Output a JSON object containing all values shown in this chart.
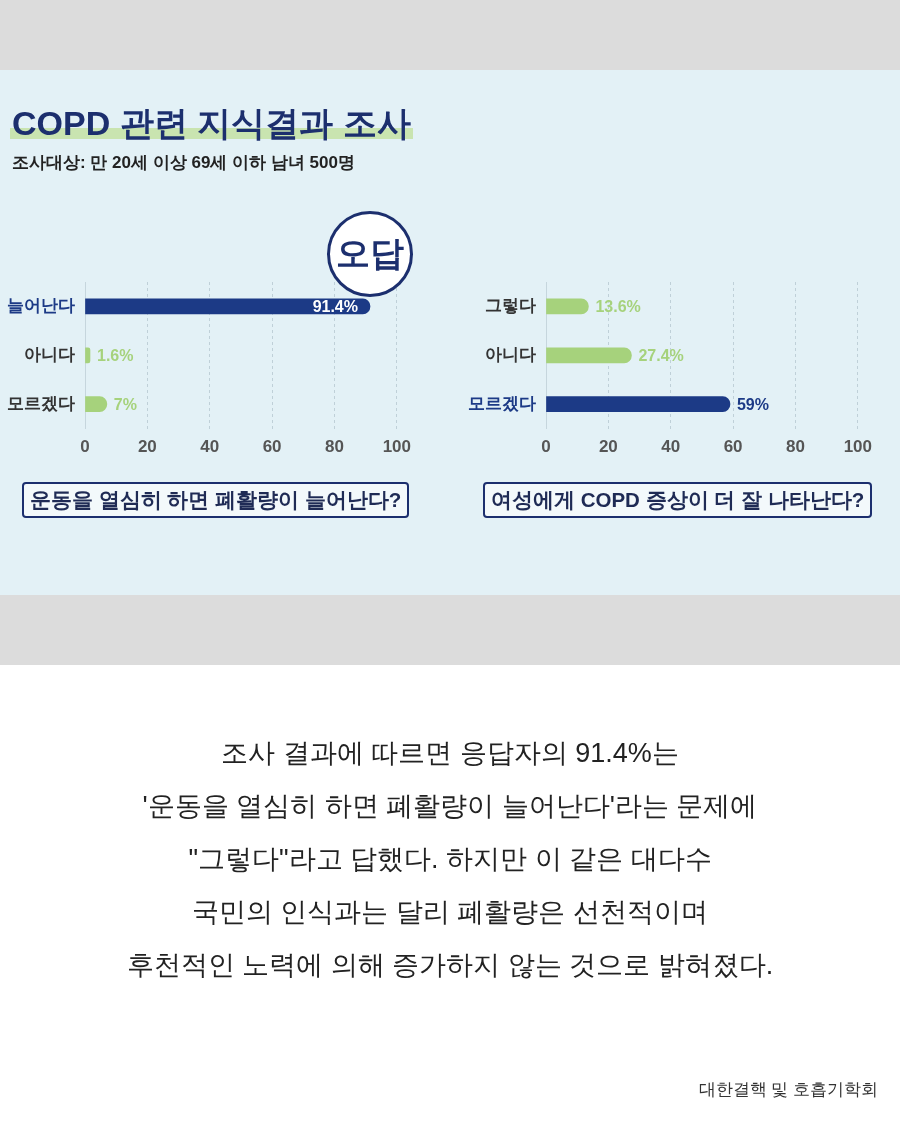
{
  "chart_data": [
    {
      "type": "bar",
      "title": "COPD 관련 지식결과 조사",
      "subtitle": "조사대상: 만 20세 이상 69세 이하 남녀 500명",
      "orientation": "horizontal",
      "categories": [
        "늘어난다",
        "아니다",
        "모르겠다"
      ],
      "values": [
        91.4,
        1.6,
        7
      ],
      "colors": [
        "#1c3a86",
        "#a6d27c",
        "#a6d27c"
      ],
      "value_labels": [
        "91.4%",
        "1.6%",
        "7%"
      ],
      "xlim": [
        0,
        100
      ],
      "xticks": [
        0,
        20,
        40,
        60,
        80,
        100
      ],
      "grid": "x",
      "xlabel": "운동을 열심히 하면 폐활량이 늘어난다?",
      "annotations": [
        {
          "text": "오답",
          "x": 91.4,
          "y": "늘어난다"
        }
      ]
    },
    {
      "type": "bar",
      "orientation": "horizontal",
      "categories": [
        "그렇다",
        "아니다",
        "모르겠다"
      ],
      "values": [
        13.6,
        27.4,
        59
      ],
      "colors": [
        "#a6d27c",
        "#a6d27c",
        "#1c3a86"
      ],
      "value_labels": [
        "13.6%",
        "27.4%",
        "59%"
      ],
      "xlim": [
        0,
        100
      ],
      "xticks": [
        0,
        20,
        40,
        60,
        80,
        100
      ],
      "grid": "x",
      "xlabel": "여성에게 COPD 증상이 더 잘 나타난다?"
    },
    {
      "type": "other",
      "annotations": [
        "조사 결과에 따르면 응답자의 91.4%는\n'운동을 열심히 하면 폐활량이 늘어난다'라는 문제에\n\"그렇다\"라고 답했다. 하지만 이 같은 대다수\n국민의 인식과는 달리 폐활량은 선천적이며\n후천적인 노력에 의해 증가하지 않는 것으로 밝혀졌다.",
        "대한결핵 및 호흡기학회"
      ]
    }
  ]
}
